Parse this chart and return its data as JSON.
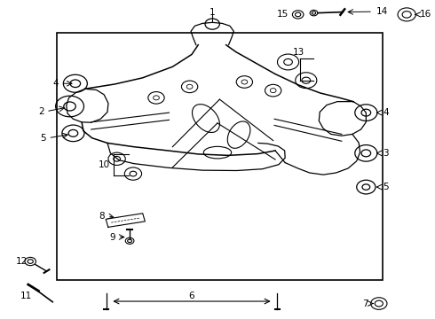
{
  "background_color": "#ffffff",
  "border_color": "#000000",
  "line_color": "#000000",
  "fig_width": 4.9,
  "fig_height": 3.6,
  "dpi": 100,
  "border": [
    0.13,
    0.12,
    0.89,
    0.9
  ]
}
